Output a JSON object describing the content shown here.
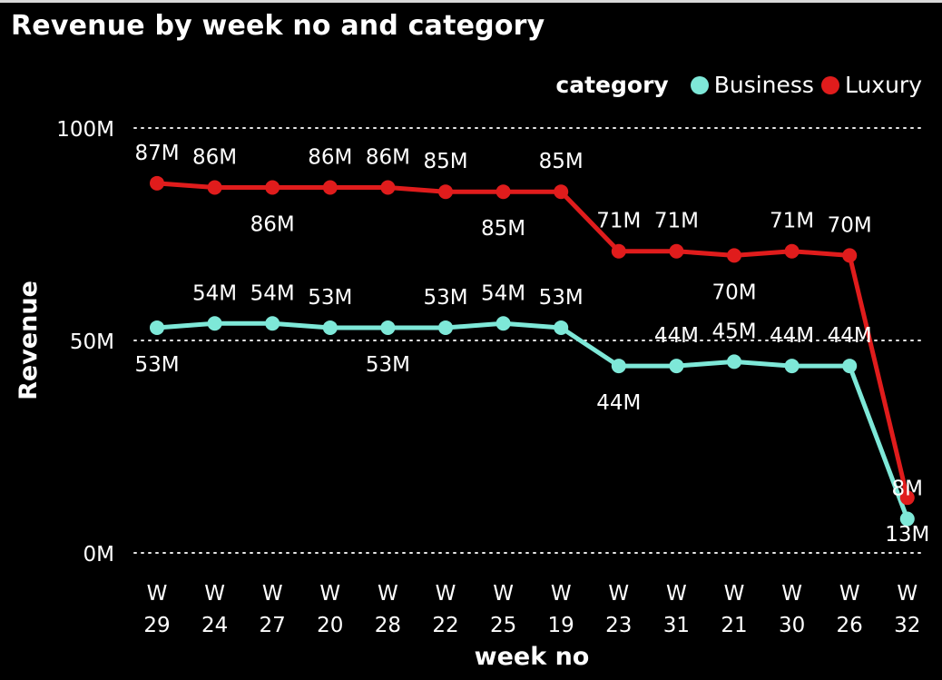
{
  "chart_data": {
    "type": "line",
    "title": "Revenue by week no and category",
    "xlabel": "week no",
    "ylabel": "Revenue",
    "ylim": [
      0,
      100000000
    ],
    "yticks": [
      {
        "value": 0,
        "label": "0M"
      },
      {
        "value": 50000000,
        "label": "50M"
      },
      {
        "value": 100000000,
        "label": "100M"
      }
    ],
    "grid": true,
    "legend_placement": "top-right",
    "legend_title": "category",
    "categories": [
      "W 29",
      "W 24",
      "W 27",
      "W 20",
      "W 28",
      "W 22",
      "W 25",
      "W 19",
      "W 23",
      "W 31",
      "W 21",
      "W 30",
      "W 26",
      "W 32"
    ],
    "series": [
      {
        "name": "Business",
        "color": "#7ee8d8",
        "values": [
          53,
          54,
          54,
          53,
          53,
          53,
          54,
          53,
          44,
          44,
          45,
          44,
          44,
          8
        ],
        "data_labels": [
          "53M",
          "54M",
          "54M",
          "53M",
          "53M",
          "53M",
          "54M",
          "53M",
          "44M",
          "44M",
          "45M",
          "44M",
          "44M",
          "8M"
        ],
        "label_position": [
          "below",
          "above",
          "above",
          "above",
          "below",
          "above",
          "above",
          "above",
          "below",
          "above",
          "above",
          "above",
          "above",
          "above"
        ]
      },
      {
        "name": "Luxury",
        "color": "#e01c1c",
        "values": [
          87,
          86,
          86,
          86,
          86,
          85,
          85,
          85,
          71,
          71,
          70,
          71,
          70,
          13
        ],
        "data_labels": [
          "87M",
          "86M",
          "86M",
          "86M",
          "86M",
          "85M",
          "85M",
          "85M",
          "71M",
          "71M",
          "70M",
          "71M",
          "70M",
          "13M"
        ],
        "label_position": [
          "above",
          "above",
          "below",
          "above",
          "above",
          "above",
          "below",
          "above",
          "above",
          "above",
          "below",
          "above",
          "above",
          "below"
        ]
      }
    ],
    "value_unit": "M"
  }
}
